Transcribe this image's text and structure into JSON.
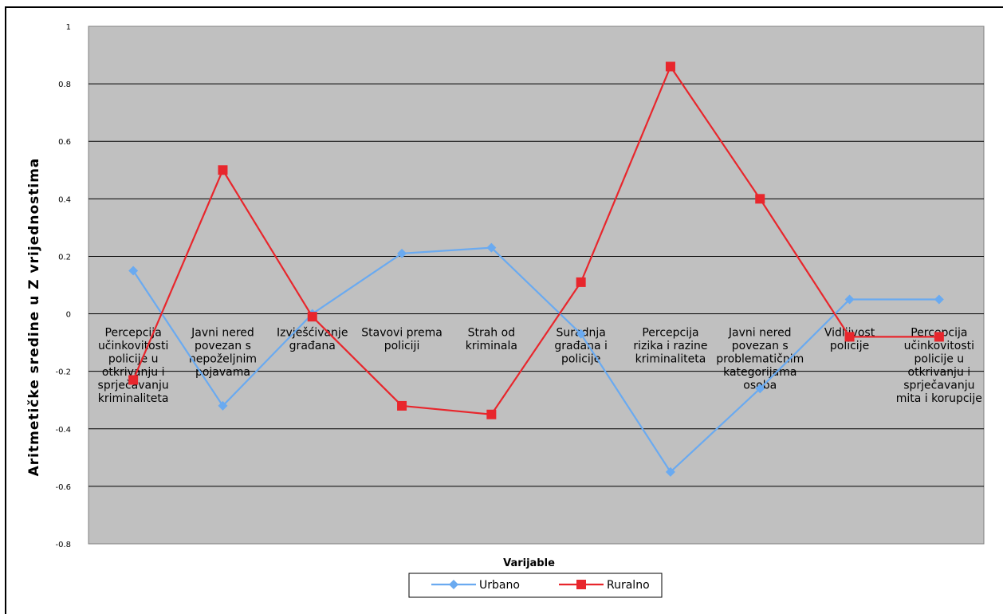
{
  "chart_data": {
    "type": "line",
    "categories": [
      [
        "Percepcija",
        "učinkovitosti",
        "policije u",
        "otkrivanju i",
        "sprječavanju",
        "kriminaliteta"
      ],
      [
        "Javni nered",
        "povezan s",
        "nepoželjnim",
        "pojavama"
      ],
      [
        "Izvješćivanje",
        "građana"
      ],
      [
        "Stavovi prema",
        "policiji"
      ],
      [
        "Strah od",
        "kriminala"
      ],
      [
        "Suradnja",
        "građana i",
        "policije"
      ],
      [
        "Percepcija",
        "rizika i razine",
        "kriminaliteta"
      ],
      [
        "Javni nered",
        "povezan s",
        "problematičnim",
        "kategorijama",
        "osoba"
      ],
      [
        "Vidljivost",
        "policije"
      ],
      [
        "Percepcija",
        "učinkovitosti",
        "policije u",
        "otkrivanju i",
        "sprječavanju",
        "mita i korupcije"
      ]
    ],
    "series": [
      {
        "name": "Urbano",
        "color": "#6aaaf0",
        "marker": "diamond",
        "values": [
          0.15,
          -0.32,
          0.0,
          0.21,
          0.23,
          -0.07,
          -0.55,
          -0.26,
          0.05,
          0.05
        ]
      },
      {
        "name": "Ruralno",
        "color": "#e8262c",
        "marker": "square",
        "values": [
          -0.23,
          0.5,
          -0.01,
          -0.32,
          -0.35,
          0.11,
          0.86,
          0.4,
          -0.08,
          -0.08
        ]
      }
    ],
    "ylim": [
      -0.8,
      1
    ],
    "yticks": [
      "1",
      "0.8",
      "0.6",
      "0.4",
      "0.2",
      "0",
      "-0.2",
      "-0.4",
      "-0.6",
      "-0.8"
    ],
    "ylabel": "Aritmetičke sredine u Z vrijednostima",
    "xlabel": "Varijable",
    "grid": true,
    "legend": "bottom",
    "plot_background": "#c0c0c0"
  }
}
